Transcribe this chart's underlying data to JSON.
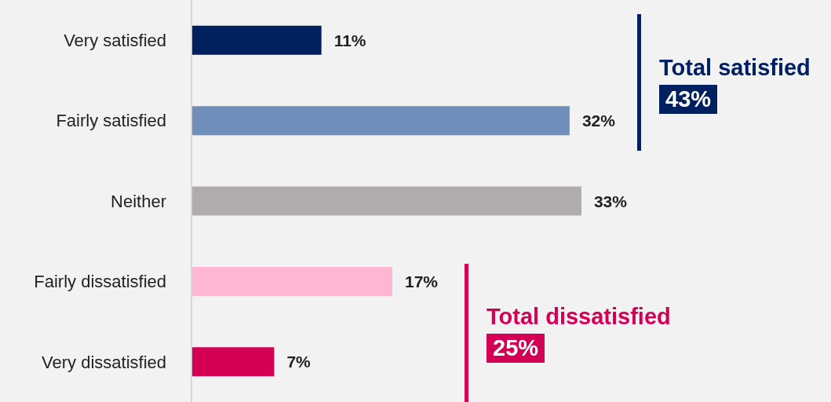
{
  "chart_data": {
    "type": "bar",
    "orientation": "horizontal",
    "categories": [
      "Very satisfied",
      "Fairly satisfied",
      "Neither",
      "Fairly dissatisfied",
      "Very dissatisfied"
    ],
    "values": [
      11,
      32,
      33,
      17,
      7
    ],
    "colors": [
      "#002060",
      "#6f8fba",
      "#b0acab",
      "#ffb6d2",
      "#d40055"
    ],
    "value_labels": [
      "11%",
      "32%",
      "33%",
      "17%",
      "7%"
    ],
    "annotations": [
      "Total satisfied",
      "43%",
      "Total dissatisfied",
      "25%"
    ]
  }
}
